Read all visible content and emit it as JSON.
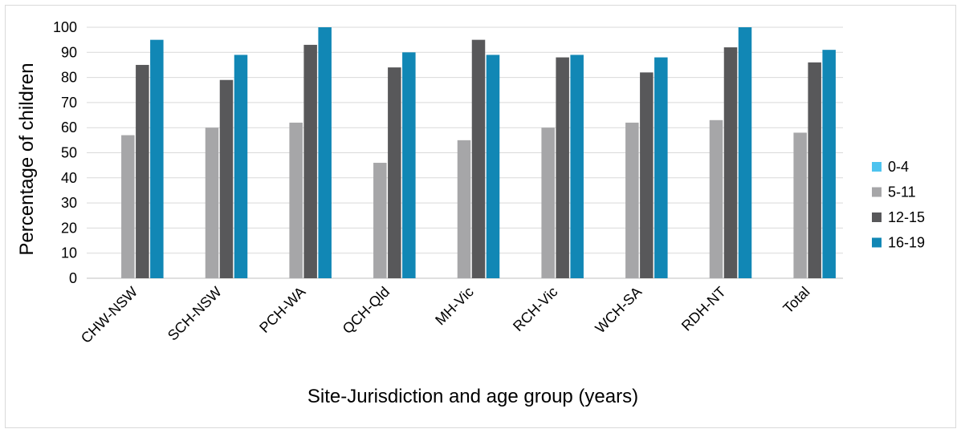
{
  "chart_data": {
    "type": "bar",
    "categories": [
      "CHW-NSW",
      "SCH-NSW",
      "PCH-WA",
      "QCH-Qld",
      "MH-Vic",
      "RCH-Vic",
      "WCH-SA",
      "RDH-NT",
      "Total"
    ],
    "series": [
      {
        "name": "0-4",
        "color": "#4dc3ef",
        "values": [
          0,
          0,
          0,
          0,
          0,
          0,
          0,
          0,
          0
        ]
      },
      {
        "name": "5-11",
        "color": "#a6a6a8",
        "values": [
          57,
          60,
          62,
          46,
          55,
          60,
          62,
          63,
          58
        ]
      },
      {
        "name": "12-15",
        "color": "#58585a",
        "values": [
          85,
          79,
          93,
          84,
          95,
          88,
          82,
          92,
          86
        ]
      },
      {
        "name": "16-19",
        "color": "#1187b5",
        "values": [
          95,
          89,
          100,
          90,
          89,
          89,
          88,
          100,
          91
        ]
      }
    ],
    "xlabel": "Site-Jurisdiction and age group (years)",
    "ylabel": "Percentage of children",
    "ylim": [
      0,
      100
    ],
    "yticks": [
      "0",
      "10",
      "20",
      "30",
      "40",
      "50",
      "60",
      "70",
      "80",
      "90",
      "100"
    ],
    "grid": true,
    "legend_position": "right"
  }
}
